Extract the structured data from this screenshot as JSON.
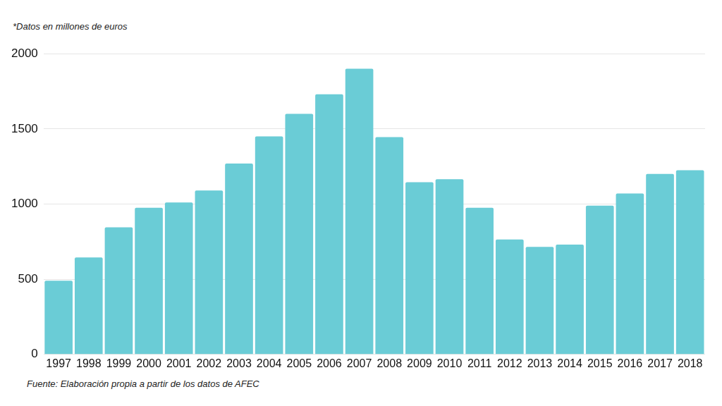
{
  "chart_data": {
    "type": "bar",
    "subtitle": "*Datos en millones de euros",
    "source": "Fuente: Elaboración propia a partir de los datos de AFEC",
    "categories": [
      "1997",
      "1998",
      "1999",
      "2000",
      "2001",
      "2002",
      "2003",
      "2004",
      "2005",
      "2006",
      "2007",
      "2008",
      "2009",
      "2010",
      "2011",
      "2012",
      "2013",
      "2014",
      "2015",
      "2016",
      "2017",
      "2018"
    ],
    "values": [
      490,
      645,
      845,
      975,
      1010,
      1090,
      1270,
      1450,
      1600,
      1730,
      1900,
      1445,
      1145,
      1165,
      975,
      765,
      715,
      730,
      990,
      1070,
      1200,
      1225
    ],
    "color": "#6accd6",
    "ylim": [
      0,
      2000
    ],
    "yticks": [
      0,
      500,
      1000,
      1500,
      2000
    ],
    "grid": true
  }
}
